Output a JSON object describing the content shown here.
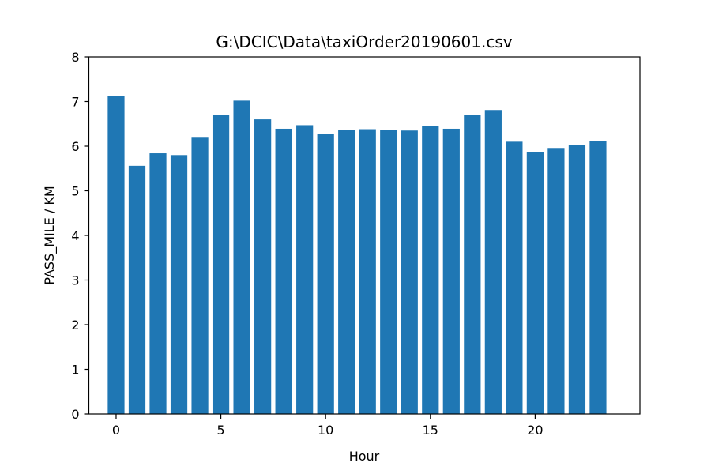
{
  "chart_data": {
    "type": "bar",
    "title": "G:\\DCIC\\Data\\taxiOrder20190601.csv",
    "xlabel": "Hour",
    "ylabel": "PASS_MILE / KM",
    "x": [
      0,
      1,
      2,
      3,
      4,
      5,
      6,
      7,
      8,
      9,
      10,
      11,
      12,
      13,
      14,
      15,
      16,
      17,
      18,
      19,
      20,
      21,
      22,
      23
    ],
    "values": [
      7.12,
      5.56,
      5.84,
      5.8,
      6.19,
      6.7,
      7.02,
      6.6,
      6.39,
      6.47,
      6.28,
      6.37,
      6.38,
      6.37,
      6.35,
      6.46,
      6.39,
      6.7,
      6.81,
      6.1,
      5.86,
      5.96,
      6.03,
      6.12
    ],
    "xlim": [
      -1.3,
      25.0
    ],
    "ylim": [
      0,
      8
    ],
    "xticks": [
      0,
      5,
      10,
      15,
      20
    ],
    "yticks": [
      0,
      1,
      2,
      3,
      4,
      5,
      6,
      7,
      8
    ],
    "bar_color": "#1f77b4",
    "grid": false,
    "legend": "none"
  }
}
